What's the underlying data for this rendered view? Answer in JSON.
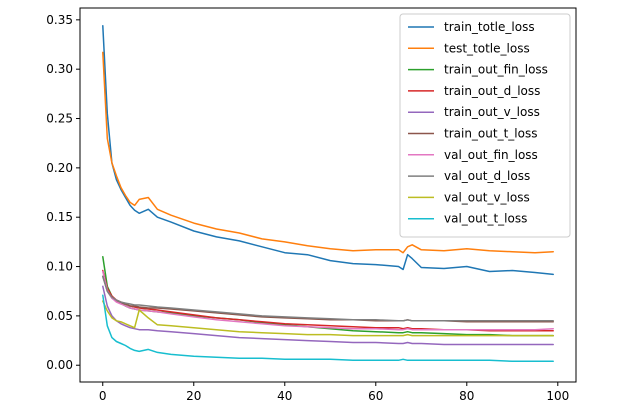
{
  "chart_data": {
    "type": "line",
    "title": "",
    "xlabel": "",
    "ylabel": "",
    "xlim": [
      -5,
      104
    ],
    "ylim": [
      -0.017,
      0.362
    ],
    "xticks": [
      0,
      20,
      40,
      60,
      80,
      100
    ],
    "yticks": [
      0.0,
      0.05,
      0.1,
      0.15,
      0.2,
      0.25,
      0.3,
      0.35
    ],
    "xtick_labels": [
      "0",
      "20",
      "40",
      "60",
      "80",
      "100"
    ],
    "ytick_labels": [
      "0.00",
      "0.05",
      "0.10",
      "0.15",
      "0.20",
      "0.25",
      "0.30",
      "0.35"
    ],
    "grid": false,
    "legend_position": "top-right",
    "x": [
      0,
      1,
      2,
      3,
      4,
      5,
      6,
      7,
      8,
      10,
      12,
      15,
      20,
      25,
      30,
      35,
      40,
      45,
      50,
      55,
      60,
      65,
      66,
      67,
      68,
      70,
      75,
      80,
      85,
      90,
      95,
      99
    ],
    "series": [
      {
        "name": "train_totle_loss",
        "color": "#1f77b4",
        "values": [
          0.344,
          0.255,
          0.205,
          0.188,
          0.178,
          0.17,
          0.162,
          0.157,
          0.154,
          0.158,
          0.15,
          0.145,
          0.136,
          0.13,
          0.126,
          0.12,
          0.114,
          0.112,
          0.106,
          0.103,
          0.102,
          0.1,
          0.097,
          0.112,
          0.108,
          0.099,
          0.098,
          0.1,
          0.095,
          0.096,
          0.094,
          0.092
        ]
      },
      {
        "name": "test_totle_loss",
        "color": "#ff7f0e",
        "values": [
          0.317,
          0.23,
          0.205,
          0.192,
          0.18,
          0.172,
          0.165,
          0.162,
          0.168,
          0.17,
          0.158,
          0.152,
          0.144,
          0.138,
          0.134,
          0.128,
          0.125,
          0.121,
          0.118,
          0.116,
          0.117,
          0.117,
          0.114,
          0.12,
          0.122,
          0.117,
          0.116,
          0.118,
          0.116,
          0.115,
          0.114,
          0.115
        ]
      },
      {
        "name": "train_out_fin_loss",
        "color": "#2ca02c",
        "values": [
          0.11,
          0.08,
          0.07,
          0.065,
          0.063,
          0.06,
          0.058,
          0.057,
          0.056,
          0.055,
          0.054,
          0.053,
          0.05,
          0.048,
          0.046,
          0.043,
          0.041,
          0.039,
          0.037,
          0.035,
          0.034,
          0.033,
          0.033,
          0.034,
          0.033,
          0.033,
          0.032,
          0.031,
          0.031,
          0.03,
          0.03,
          0.03
        ]
      },
      {
        "name": "train_out_d_loss",
        "color": "#d62728",
        "values": [
          0.096,
          0.078,
          0.07,
          0.066,
          0.064,
          0.062,
          0.06,
          0.059,
          0.058,
          0.057,
          0.056,
          0.054,
          0.051,
          0.048,
          0.046,
          0.044,
          0.042,
          0.041,
          0.04,
          0.039,
          0.038,
          0.038,
          0.037,
          0.038,
          0.037,
          0.037,
          0.036,
          0.036,
          0.035,
          0.035,
          0.035,
          0.035
        ]
      },
      {
        "name": "train_out_v_loss",
        "color": "#9467bd",
        "values": [
          0.08,
          0.06,
          0.05,
          0.045,
          0.042,
          0.04,
          0.038,
          0.037,
          0.036,
          0.036,
          0.035,
          0.034,
          0.032,
          0.03,
          0.028,
          0.027,
          0.026,
          0.025,
          0.024,
          0.023,
          0.023,
          0.022,
          0.022,
          0.023,
          0.022,
          0.022,
          0.021,
          0.021,
          0.021,
          0.021,
          0.021,
          0.021
        ]
      },
      {
        "name": "train_out_t_loss",
        "color": "#8c564b",
        "values": [
          0.09,
          0.075,
          0.068,
          0.065,
          0.063,
          0.062,
          0.06,
          0.06,
          0.059,
          0.058,
          0.058,
          0.057,
          0.055,
          0.053,
          0.051,
          0.049,
          0.048,
          0.047,
          0.046,
          0.046,
          0.045,
          0.045,
          0.045,
          0.046,
          0.045,
          0.045,
          0.045,
          0.044,
          0.044,
          0.044,
          0.044,
          0.044
        ]
      },
      {
        "name": "val_out_fin_loss",
        "color": "#e377c2",
        "values": [
          0.095,
          0.076,
          0.068,
          0.064,
          0.062,
          0.06,
          0.058,
          0.057,
          0.056,
          0.055,
          0.054,
          0.052,
          0.049,
          0.046,
          0.044,
          0.042,
          0.04,
          0.039,
          0.038,
          0.037,
          0.037,
          0.036,
          0.036,
          0.037,
          0.036,
          0.036,
          0.036,
          0.036,
          0.036,
          0.036,
          0.036,
          0.037
        ]
      },
      {
        "name": "val_out_d_loss",
        "color": "#7f7f7f",
        "values": [
          0.09,
          0.075,
          0.069,
          0.066,
          0.064,
          0.063,
          0.062,
          0.061,
          0.061,
          0.06,
          0.059,
          0.058,
          0.056,
          0.054,
          0.052,
          0.05,
          0.049,
          0.048,
          0.047,
          0.046,
          0.046,
          0.045,
          0.045,
          0.046,
          0.045,
          0.045,
          0.045,
          0.045,
          0.045,
          0.045,
          0.045,
          0.045
        ]
      },
      {
        "name": "val_out_v_loss",
        "color": "#bcbd22",
        "values": [
          0.065,
          0.055,
          0.048,
          0.045,
          0.044,
          0.042,
          0.04,
          0.038,
          0.056,
          0.048,
          0.041,
          0.04,
          0.038,
          0.036,
          0.034,
          0.033,
          0.032,
          0.031,
          0.031,
          0.03,
          0.03,
          0.03,
          0.03,
          0.031,
          0.03,
          0.03,
          0.03,
          0.03,
          0.03,
          0.03,
          0.03,
          0.03
        ]
      },
      {
        "name": "val_out_t_loss",
        "color": "#17becf",
        "values": [
          0.071,
          0.04,
          0.028,
          0.024,
          0.022,
          0.02,
          0.017,
          0.015,
          0.014,
          0.016,
          0.013,
          0.011,
          0.009,
          0.008,
          0.007,
          0.007,
          0.006,
          0.006,
          0.006,
          0.005,
          0.005,
          0.005,
          0.006,
          0.005,
          0.005,
          0.005,
          0.005,
          0.005,
          0.005,
          0.004,
          0.004,
          0.004
        ]
      }
    ]
  }
}
